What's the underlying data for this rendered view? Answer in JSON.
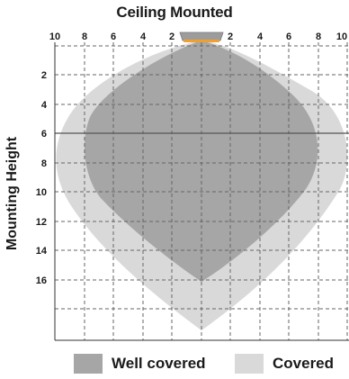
{
  "title": "Ceiling Mounted",
  "ylabel": "Mounting Height",
  "x_ticks_left": [
    "10",
    "8",
    "6",
    "4",
    "2"
  ],
  "x_ticks_right": [
    "2",
    "4",
    "6",
    "8",
    "10"
  ],
  "y_ticks": [
    "2",
    "4",
    "6",
    "8",
    "10",
    "12",
    "14",
    "16"
  ],
  "highlight_height": 6,
  "legend": [
    {
      "label": "Well covered",
      "color": "#a6a6a6"
    },
    {
      "label": "Covered",
      "color": "#d9d9d9"
    }
  ],
  "colors": {
    "covered": "#d9d9d9",
    "well_covered": "#a6a6a6",
    "grid": "#666666",
    "sensor_body": "#9c9c9c",
    "sensor_lens": "#f0a030"
  }
}
